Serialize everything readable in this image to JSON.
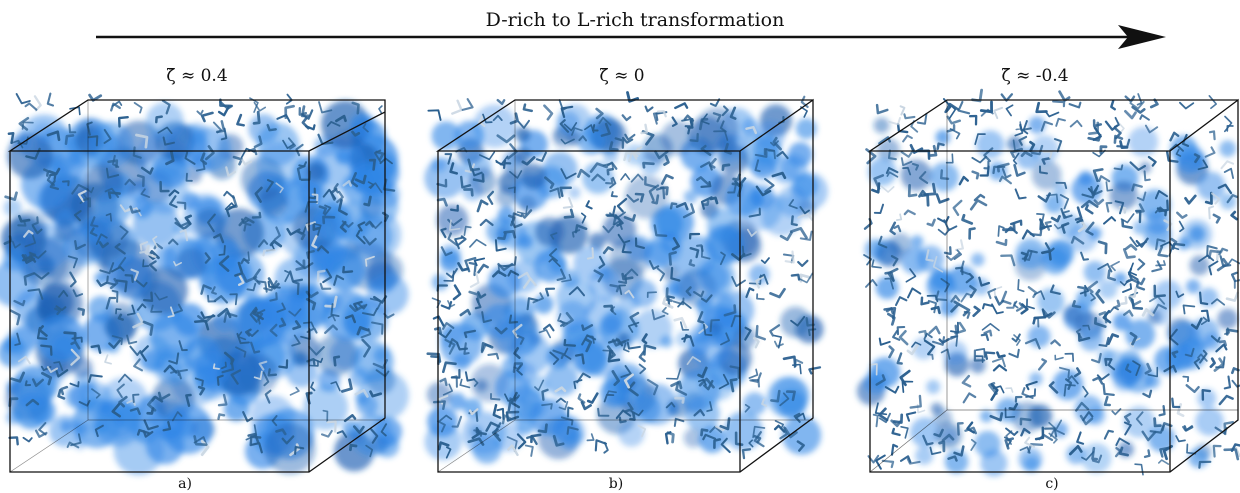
{
  "header": {
    "title": "D-rich to L-rich transformation"
  },
  "panels": [
    {
      "id": "a",
      "zeta_text": "ζ̄ ≈ 0.4",
      "label": "a)",
      "cloud_density": 1.0
    },
    {
      "id": "b",
      "zeta_text": "ζ̄ ≈ 0",
      "label": "b)",
      "cloud_density": 0.8
    },
    {
      "id": "c",
      "zeta_text": "ζ̄ ≈ -0.4",
      "label": "c)",
      "cloud_density": 0.5
    }
  ],
  "colors": {
    "fluid": "#2f86e6",
    "fluid_dark": "#1d5fb3",
    "chain": "#2a5f8f",
    "chain_light": "#c9d6e2",
    "box_edge": "#111111"
  }
}
